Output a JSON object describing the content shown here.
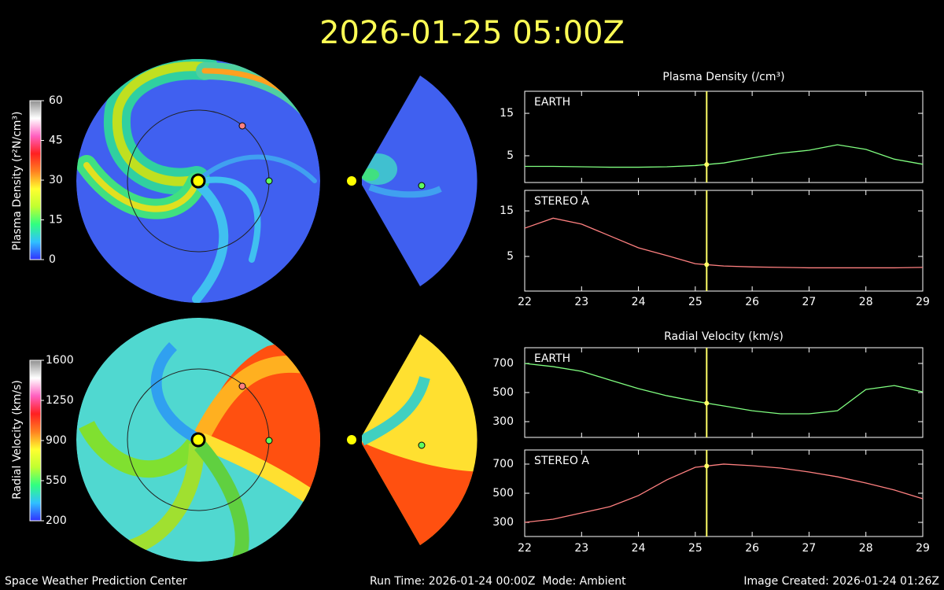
{
  "header": {
    "title": "2026-01-25 05:00Z"
  },
  "footer": {
    "left": "Space Weather Prediction Center",
    "center": "Run Time: 2026-01-24 00:00Z  Mode: Ambient",
    "right": "Image Created: 2026-01-24 01:26Z"
  },
  "chart_data": [
    {
      "type": "line",
      "title": "Plasma Density (/cm³)",
      "x": [
        22,
        22.5,
        23,
        23.5,
        24,
        24.5,
        25,
        25.5,
        26,
        26.5,
        27,
        27.5,
        28,
        28.5,
        29
      ],
      "xlim": [
        22,
        29
      ],
      "xticks": [
        22,
        23,
        24,
        25,
        26,
        27,
        28,
        29
      ],
      "marker_x": 25.2,
      "marker_color": "#ffff66",
      "panels": [
        {
          "label": "EARTH",
          "color": "#80ff80",
          "ylim": [
            -1.3,
            20.2
          ],
          "yticks": [
            5,
            15
          ],
          "values": [
            2.5,
            2.5,
            2.4,
            2.3,
            2.3,
            2.4,
            2.7,
            3.3,
            4.5,
            5.6,
            6.3,
            7.6,
            6.5,
            4.2,
            3.0
          ]
        },
        {
          "label": "STEREO A",
          "color": "#ff8080",
          "ylim": [
            -2.6,
            19.5
          ],
          "yticks": [
            5,
            15
          ],
          "values": [
            11.2,
            13.4,
            12.1,
            9.5,
            6.9,
            5.2,
            3.4,
            2.9,
            2.7,
            2.6,
            2.5,
            2.5,
            2.5,
            2.5,
            2.6
          ]
        }
      ]
    },
    {
      "type": "line",
      "title": "Radial Velocity (km/s)",
      "x": [
        22,
        22.5,
        23,
        23.5,
        24,
        24.5,
        25,
        25.5,
        26,
        26.5,
        27,
        27.5,
        28,
        28.5,
        29
      ],
      "xlim": [
        22,
        29
      ],
      "xticks": [
        22,
        23,
        24,
        25,
        26,
        27,
        28,
        29
      ],
      "marker_x": 25.2,
      "marker_color": "#ffff66",
      "panels": [
        {
          "label": "EARTH",
          "color": "#80ff80",
          "ylim": [
            192,
            808
          ],
          "yticks": [
            300,
            500,
            700
          ],
          "values": [
            700,
            678,
            646,
            586,
            527,
            478,
            440,
            408,
            375,
            354,
            354,
            375,
            521,
            548,
            505
          ]
        },
        {
          "label": "STEREO A",
          "color": "#ff8080",
          "ylim": [
            203,
            797
          ],
          "yticks": [
            300,
            500,
            700
          ],
          "values": [
            300,
            322,
            365,
            408,
            484,
            592,
            678,
            700,
            689,
            673,
            646,
            613,
            570,
            522,
            462
          ]
        }
      ]
    },
    {
      "type": "colorbar",
      "label": "Plasma Density (r²N/cm³)",
      "ylim": [
        0,
        60
      ],
      "yticks": [
        0,
        15,
        30,
        45,
        60
      ],
      "colors": [
        "#3030ff",
        "#30c0ff",
        "#30ff80",
        "#c0ff30",
        "#ffff30",
        "#ff8020",
        "#ff2020",
        "#ff60c0",
        "#ffffff",
        "#909090"
      ]
    },
    {
      "type": "colorbar",
      "label": "Radial Velocity (km/s)",
      "ylim": [
        200,
        1600
      ],
      "yticks": [
        200,
        550,
        900,
        1250,
        1600
      ],
      "colors": [
        "#3030ff",
        "#30c0ff",
        "#30ff80",
        "#c0ff30",
        "#ffff30",
        "#ff8020",
        "#ff2020",
        "#ff60c0",
        "#ffffff",
        "#909090"
      ]
    }
  ]
}
